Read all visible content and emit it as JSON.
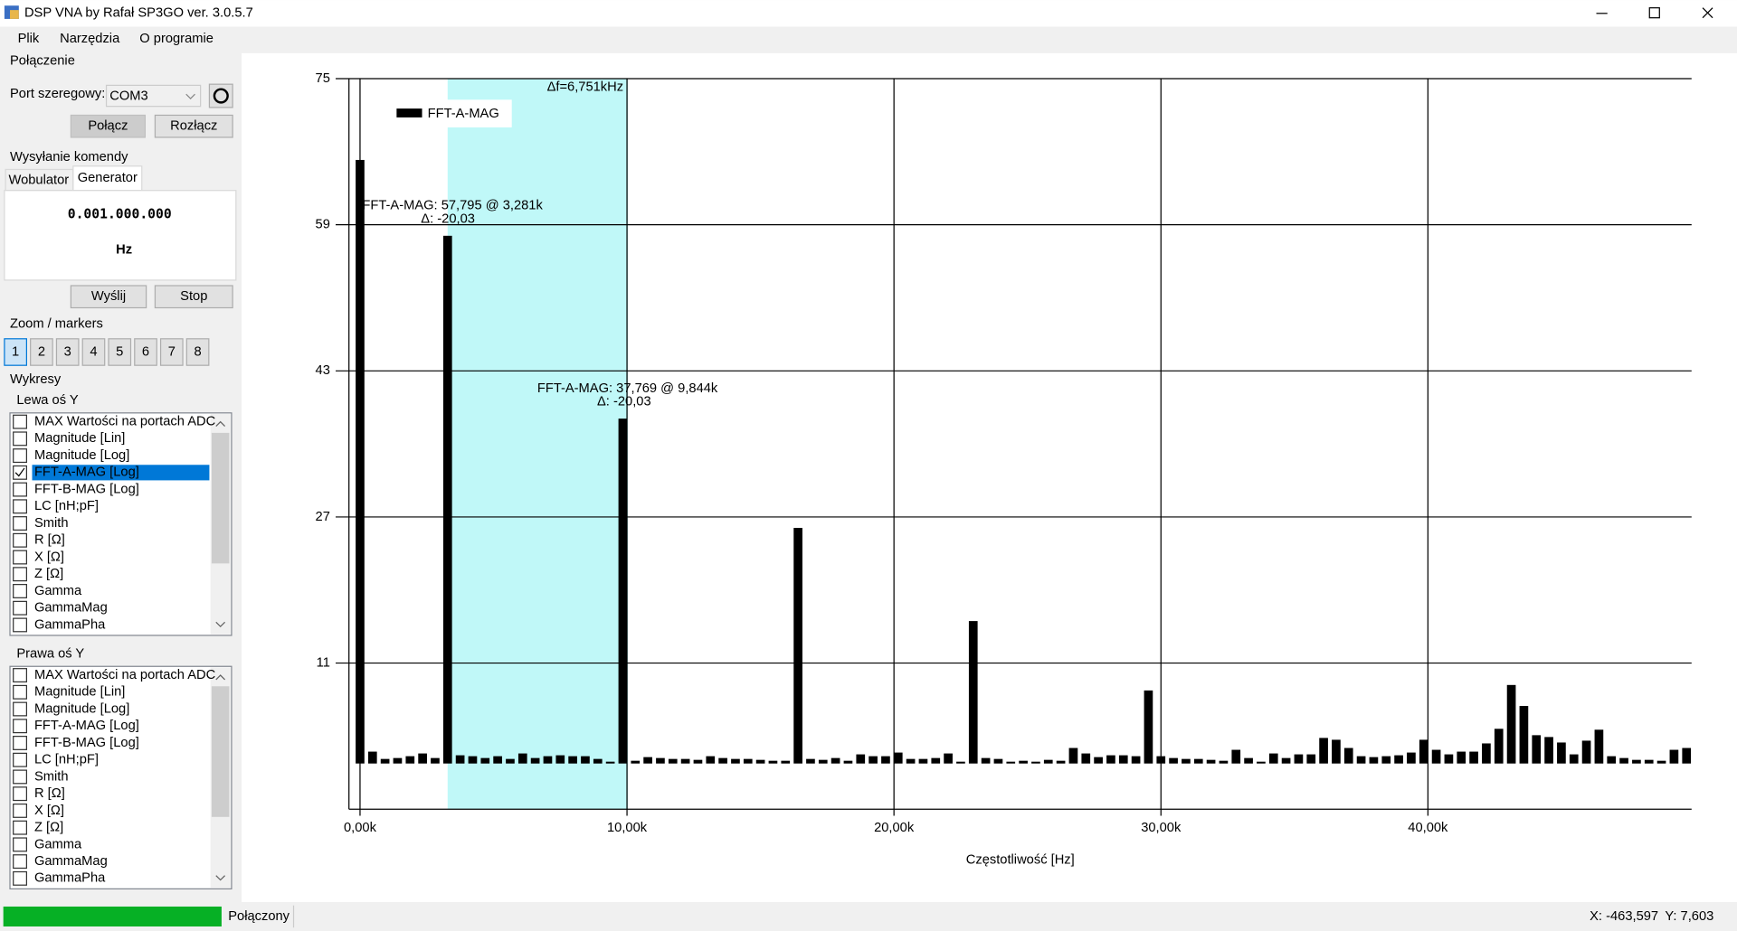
{
  "window": {
    "title": "DSP VNA by Rafał SP3GO ver. 3.0.5.7"
  },
  "menu": [
    "Plik",
    "Narzędzia",
    "O programie"
  ],
  "panel": {
    "connection": {
      "title": "Połączenie",
      "port_label": "Port szeregowy:",
      "port": "COM3",
      "connect": "Połącz",
      "disconnect": "Rozłącz"
    },
    "command": {
      "title": "Wysyłanie komendy",
      "tabs": [
        "Wobulator",
        "Generator"
      ],
      "frequency": "0.001.000.000",
      "unit": "Hz",
      "send": "Wyślij",
      "stop": "Stop"
    },
    "zoom": {
      "title": "Zoom / markers",
      "buttons": [
        "1",
        "2",
        "3",
        "4",
        "5",
        "6",
        "7",
        "8"
      ]
    },
    "plots": {
      "title": "Wykresy",
      "left": {
        "title": "Lewa oś Y",
        "checked": 3,
        "items": [
          "MAX Wartości na portach ADC",
          "Magnitude [Lin]",
          "Magnitude [Log]",
          "FFT-A-MAG [Log]",
          "FFT-B-MAG [Log]",
          "LC [nH;pF]",
          "Smith",
          "R [Ω]",
          "X [Ω]",
          "Z [Ω]",
          "Gamma",
          "GammaMag",
          "GammaPha"
        ]
      },
      "right": {
        "title": "Prawa oś Y",
        "items": [
          "MAX Wartości na portach ADC",
          "Magnitude [Lin]",
          "Magnitude [Log]",
          "FFT-A-MAG [Log]",
          "FFT-B-MAG [Log]",
          "LC [nH;pF]",
          "Smith",
          "R [Ω]",
          "X [Ω]",
          "Z [Ω]",
          "Gamma",
          "GammaMag",
          "GammaPha"
        ]
      }
    }
  },
  "status": {
    "state": "Połączony",
    "x": "X: -463,597",
    "y": "Y: 7,603"
  },
  "chart_data": {
    "type": "bar",
    "xlabel": "Częstotliwość [Hz]",
    "legend": "top-left",
    "grid": true,
    "xlim": [
      -415,
      49876
    ],
    "ylim": [
      -5,
      75
    ],
    "xticks": [
      {
        "value": 0,
        "label": "0,00k"
      },
      {
        "value": 10000,
        "label": "10,00k"
      },
      {
        "value": 20000,
        "label": "20,00k"
      },
      {
        "value": 30000,
        "label": "30,00k"
      },
      {
        "value": 40000,
        "label": "40,00k"
      }
    ],
    "yticks": [
      11,
      27,
      43,
      59,
      75
    ],
    "span": {
      "x": [
        3281.25,
        10032
      ],
      "label": "Δf=6,751kHz",
      "color": "#c0f8f8"
    },
    "annotations": [
      {
        "text": "FFT-A-MAG: 57,795 @ 3,281k",
        "delta": "Δ: -20,03"
      },
      {
        "text": "FFT-A-MAG: 37,769 @ 9,844k",
        "delta": "Δ: -20,03"
      }
    ],
    "x": [
      0,
      468.75,
      937.5,
      1406.25,
      1875,
      2343.75,
      2812.5,
      3281.25,
      3750,
      4218.75,
      4687.5,
      5156.25,
      5625,
      6093.75,
      6562.5,
      7031.25,
      7500,
      7968.75,
      8437.5,
      8906.25,
      9375,
      9843.75,
      10312.5,
      10781.25,
      11250,
      11718.75,
      12187.5,
      12656.25,
      13125,
      13593.75,
      14062.5,
      14531.25,
      15000,
      15468.75,
      15937.5,
      16406.25,
      16875,
      17343.75,
      17812.5,
      18281.25,
      18750,
      19218.75,
      19687.5,
      20156.25,
      20625,
      21093.75,
      21562.5,
      22031.25,
      22500,
      22968.75,
      23437.5,
      23906.25,
      24375,
      24843.75,
      25312.5,
      25781.25,
      26250,
      26718.75,
      27187.5,
      27656.25,
      28125,
      28593.75,
      29062.5,
      29531.25,
      30000,
      30468.75,
      30937.5,
      31406.25,
      31875,
      32343.75,
      32812.5,
      33281.25,
      33750,
      34218.75,
      34687.5,
      35156.25,
      35625,
      36093.75,
      36562.5,
      37031.25,
      37500,
      37968.75,
      38437.5,
      38906.25,
      39375,
      39843.75,
      40312.5,
      40781.25,
      41250,
      41718.75,
      42187.5,
      42656.25,
      43125,
      43593.75,
      44062.5,
      44531.25,
      45000,
      45468.75,
      45937.5,
      46406.25,
      46875,
      47343.75,
      47812.5,
      48281.25,
      48750,
      49218.75,
      49687.5
    ],
    "series": [
      {
        "name": "FFT-A-MAG",
        "color": "#000000",
        "values": [
          66.1,
          1.3,
          0.5,
          0.6,
          0.8,
          1.1,
          0.6,
          57.795,
          0.9,
          0.8,
          0.6,
          0.8,
          0.5,
          1.1,
          0.6,
          0.8,
          0.9,
          0.8,
          0.8,
          0.5,
          0.2,
          37.769,
          0.3,
          0.7,
          0.6,
          0.5,
          0.5,
          0.4,
          0.8,
          0.6,
          0.5,
          0.5,
          0.4,
          0.3,
          0.3,
          25.8,
          0.5,
          0.4,
          0.6,
          0.3,
          1.0,
          0.8,
          0.8,
          1.2,
          0.5,
          0.5,
          0.6,
          1.1,
          0.2,
          15.6,
          0.6,
          0.5,
          0.2,
          0.3,
          0.2,
          0.4,
          0.3,
          1.7,
          1.1,
          0.7,
          0.9,
          0.9,
          0.8,
          8.0,
          0.8,
          0.6,
          0.5,
          0.5,
          0.4,
          0.3,
          1.5,
          0.6,
          0.2,
          1.1,
          0.6,
          1.0,
          1.0,
          2.8,
          2.6,
          1.7,
          0.8,
          0.7,
          0.8,
          0.9,
          1.2,
          2.6,
          1.5,
          1.0,
          1.3,
          1.3,
          2.2,
          3.8,
          8.6,
          6.3,
          3.1,
          2.9,
          2.3,
          1.0,
          2.5,
          3.7,
          0.8,
          0.6,
          0.4,
          0.4,
          0.3,
          1.5,
          1.7
        ]
      }
    ]
  }
}
